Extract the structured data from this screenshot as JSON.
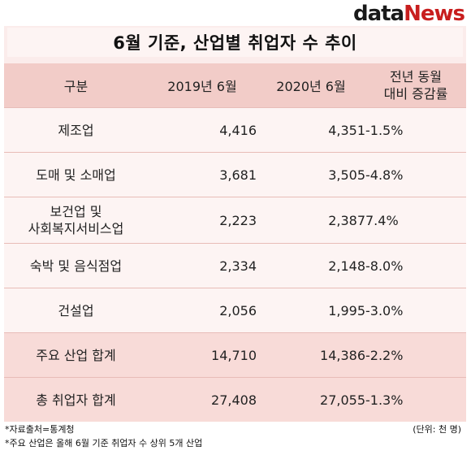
{
  "source_logo": {
    "part1": "data",
    "part2": "News"
  },
  "title": "6월 기준, 산업별 취업자 수 추이",
  "table": {
    "headers": {
      "category": "구분",
      "year2019": "2019년 6월",
      "year2020": "2020년 6월",
      "change_line1": "전년 동월",
      "change_line2": "대비 증감률"
    },
    "rows": [
      {
        "label_line1": "제조업",
        "label_line2": "",
        "v2019": "4,416",
        "v2020": "4,351",
        "change": "-1.5%"
      },
      {
        "label_line1": "도매 및 소매업",
        "label_line2": "",
        "v2019": "3,681",
        "v2020": "3,505",
        "change": "-4.8%"
      },
      {
        "label_line1": "보건업 및",
        "label_line2": "사회복지서비스업",
        "v2019": "2,223",
        "v2020": "2,387",
        "change": "7.4%"
      },
      {
        "label_line1": "숙박 및 음식점업",
        "label_line2": "",
        "v2019": "2,334",
        "v2020": "2,148",
        "change": "-8.0%"
      },
      {
        "label_line1": "건설업",
        "label_line2": "",
        "v2019": "2,056",
        "v2020": "1,995",
        "change": "-3.0%"
      }
    ],
    "totals": [
      {
        "label": "주요 산업 합계",
        "v2019": "14,710",
        "v2020": "14,386",
        "change": "-2.2%"
      },
      {
        "label": "총 취업자 합계",
        "v2019": "27,408",
        "v2020": "27,055",
        "change": "-1.3%"
      }
    ]
  },
  "notes": {
    "source": "*자료출처=통계청",
    "note": "*주요 산업은 올해 6월 기준 취업자 수 상위 5개 산업",
    "unit": "(단위: 천 명)"
  },
  "colors": {
    "header_bg": "#f2ccc8",
    "body_bg": "#fdf4f3",
    "total_bg": "#f8dbd8",
    "logo_accent": "#c81e1e"
  }
}
